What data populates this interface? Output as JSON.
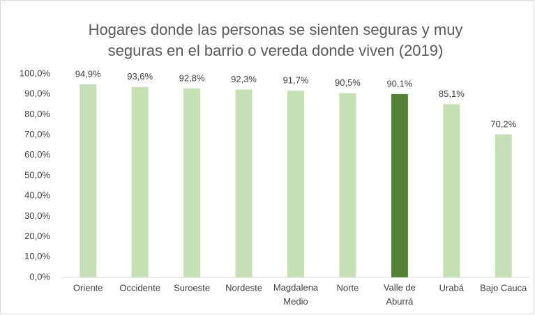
{
  "chart_data": {
    "type": "bar",
    "title": [
      "Hogares donde las personas se sienten seguras y muy",
      "seguras en el barrio o vereda donde viven (2019)"
    ],
    "categories": [
      "Oriente",
      "Occidente",
      "Suroeste",
      "Nordeste",
      "Magdalena Medio",
      "Norte",
      "Valle de Aburrá",
      "Urabá",
      "Bajo Cauca"
    ],
    "values": [
      94.9,
      93.6,
      92.8,
      92.3,
      91.7,
      90.5,
      90.1,
      85.1,
      70.2
    ],
    "value_labels": [
      "94,9%",
      "93,6%",
      "92,8%",
      "92,3%",
      "91,7%",
      "90,5%",
      "90,1%",
      "85,1%",
      "70,2%"
    ],
    "colors": [
      "#c5e0b4",
      "#c5e0b4",
      "#c5e0b4",
      "#c5e0b4",
      "#c5e0b4",
      "#c5e0b4",
      "#548235",
      "#c5e0b4",
      "#c5e0b4"
    ],
    "ylim": [
      0,
      100
    ],
    "yticks": [
      {
        "value": 0,
        "label": "0,0%"
      },
      {
        "value": 10,
        "label": "10,0%"
      },
      {
        "value": 20,
        "label": "20,0%"
      },
      {
        "value": 30,
        "label": "30,0%"
      },
      {
        "value": 40,
        "label": "40,0%"
      },
      {
        "value": 50,
        "label": "50,0%"
      },
      {
        "value": 60,
        "label": "60,0%"
      },
      {
        "value": 70,
        "label": "70,0%"
      },
      {
        "value": 80,
        "label": "80,0%"
      },
      {
        "value": 90,
        "label": "90,0%"
      },
      {
        "value": 100,
        "label": "100,0%"
      }
    ],
    "grid": false
  }
}
